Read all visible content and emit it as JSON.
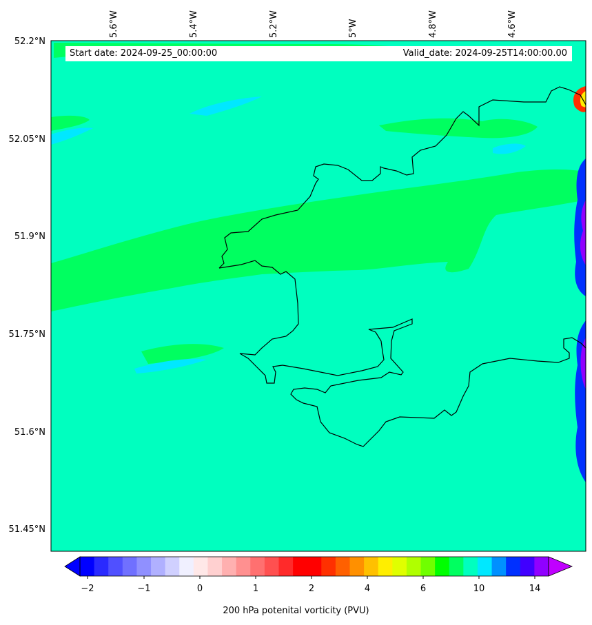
{
  "header": {
    "start_date": "Start date: 2024-09-25_00:00:00",
    "valid_date": "Valid_date: 2024-09-25T14:00:00.00"
  },
  "map": {
    "lon_ticks": [
      "5.6°W",
      "5.4°W",
      "5.2°W",
      "5°W",
      "4.8°W",
      "4.6°W"
    ],
    "lat_ticks": [
      "52.2°N",
      "52.05°N",
      "51.9°N",
      "51.75°N",
      "51.6°N",
      "51.45°N"
    ],
    "background_color": "#00ffbf",
    "coastline_color": "#000000"
  },
  "colorbar": {
    "title": "200 hPa potenital vorticity (PVU)",
    "tick_labels": [
      "−2",
      "−1",
      "0",
      "1",
      "2",
      "4",
      "6",
      "10",
      "14"
    ],
    "colors": [
      "#0000ff",
      "#2a2aff",
      "#5050ff",
      "#7070ff",
      "#9090ff",
      "#b0b0ff",
      "#d0d0ff",
      "#f0f0ff",
      "#ffe8e8",
      "#ffd0d0",
      "#ffb0b0",
      "#ff9090",
      "#ff7070",
      "#ff5050",
      "#ff2a2a",
      "#ff0000",
      "#ff0000",
      "#ff3000",
      "#ff6000",
      "#ff9000",
      "#ffc000",
      "#ffee00",
      "#e0ff00",
      "#b0ff00",
      "#70ff00",
      "#00ff00",
      "#00ff60",
      "#00ffbf",
      "#00e8ff",
      "#0090ff",
      "#0030ff",
      "#4000ff",
      "#9000ff"
    ],
    "under_color": "#0000ff",
    "over_color": "#c000ff"
  }
}
